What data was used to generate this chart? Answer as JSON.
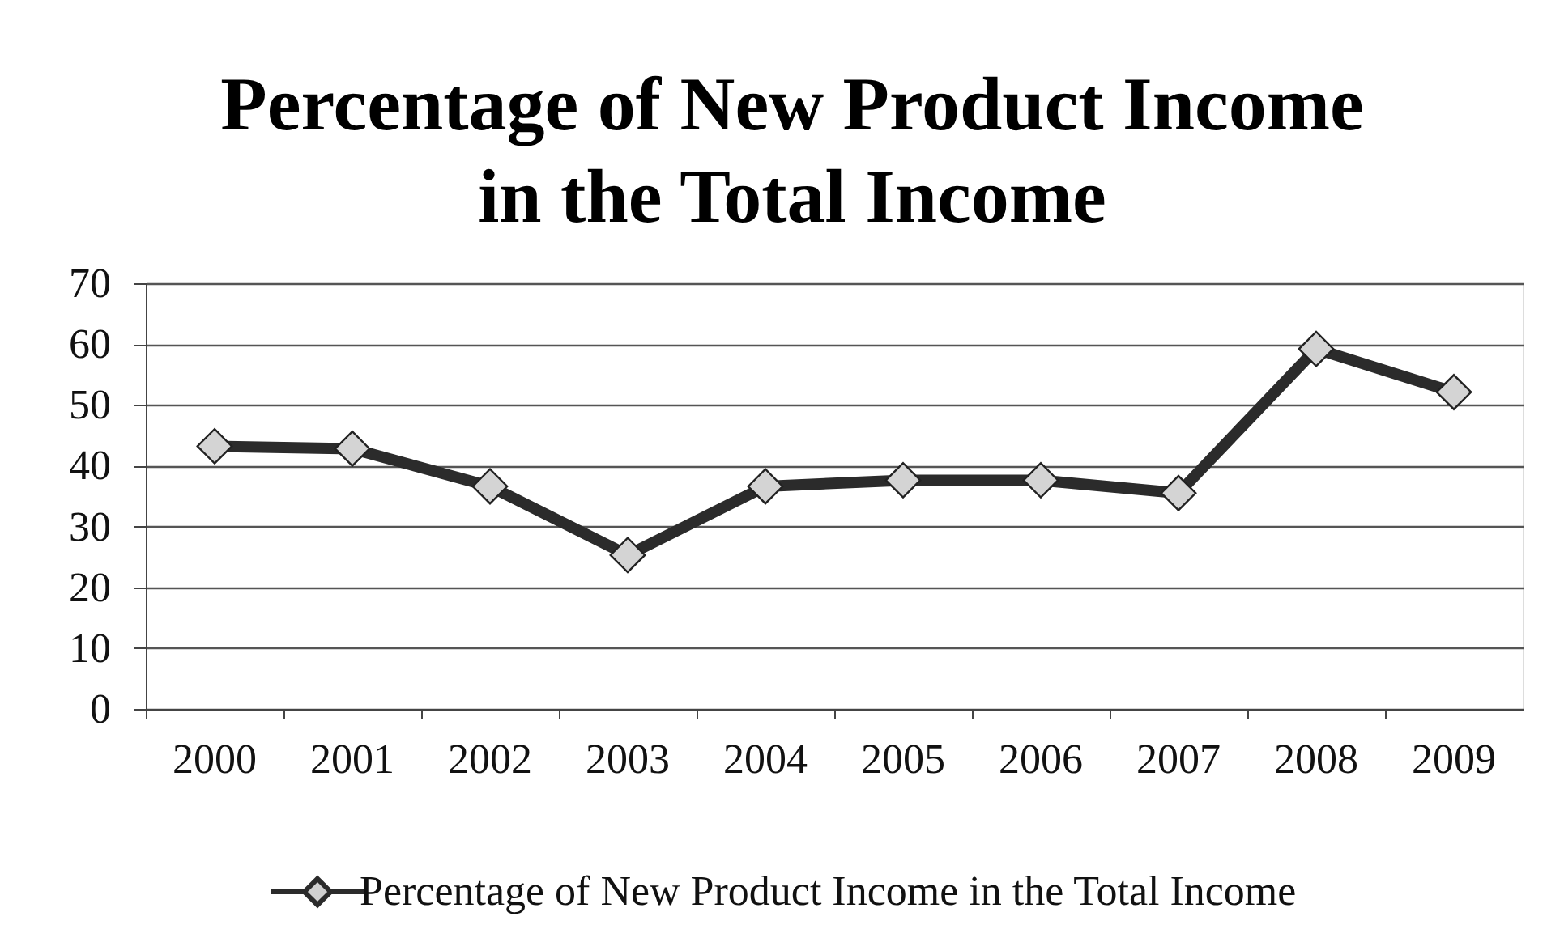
{
  "chart_data": {
    "type": "line",
    "title": "Percentage of New Product Income\nin the Total Income",
    "categories": [
      "2000",
      "2001",
      "2002",
      "2003",
      "2004",
      "2005",
      "2006",
      "2007",
      "2008",
      "2009"
    ],
    "series": [
      {
        "name": "Percentage of New Product Income in the Total Income",
        "color": "#2b2b2b",
        "values": [
          43.2,
          42.8,
          36.6,
          25.3,
          36.6,
          37.6,
          37.6,
          35.5,
          59.2,
          52.1
        ]
      }
    ],
    "ylim": [
      0,
      70
    ],
    "yticks": [
      0,
      10,
      20,
      30,
      40,
      50,
      60,
      70
    ],
    "grid": "y",
    "legend": "bottom",
    "marker": "diamond",
    "line_style": "solid"
  }
}
